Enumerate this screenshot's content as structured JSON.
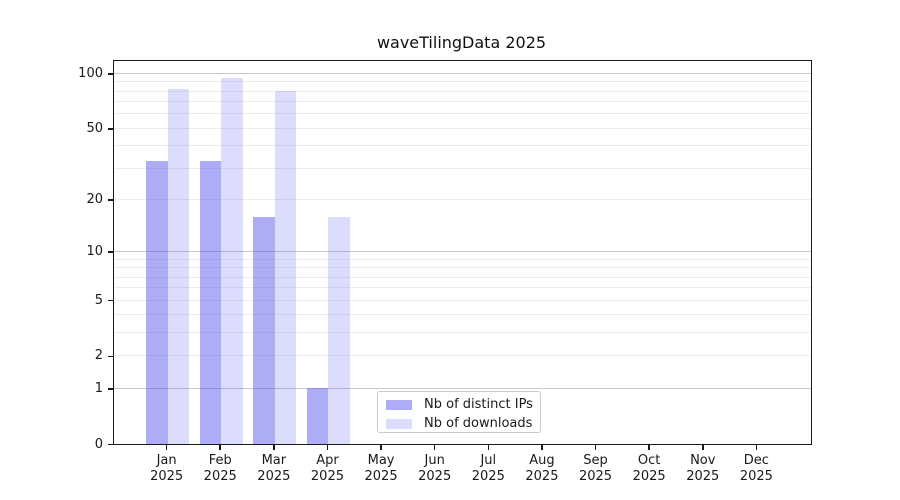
{
  "title": "waveTilingData 2025",
  "chart_data": {
    "type": "bar",
    "title": "waveTilingData 2025",
    "categories": [
      "Jan 2025",
      "Feb 2025",
      "Mar 2025",
      "Apr 2025",
      "May 2025",
      "Jun 2025",
      "Jul 2025",
      "Aug 2025",
      "Sep 2025",
      "Oct 2025",
      "Nov 2025",
      "Dec 2025"
    ],
    "month_labels": [
      "Jan",
      "Feb",
      "Mar",
      "Apr",
      "May",
      "Jun",
      "Jul",
      "Aug",
      "Sep",
      "Oct",
      "Nov",
      "Dec"
    ],
    "year_label": "2025",
    "series": [
      {
        "name": "Nb of distinct IPs",
        "color": "rgba(90,90,240,0.50)",
        "values": [
          33,
          33,
          16,
          1,
          0,
          0,
          0,
          0,
          0,
          0,
          0,
          0
        ]
      },
      {
        "name": "Nb of downloads",
        "color": "rgba(90,90,240,0.21)",
        "values": [
          82,
          94,
          80,
          16,
          0,
          0,
          0,
          0,
          0,
          0,
          0,
          0
        ]
      }
    ],
    "y_axis": {
      "scale": "symlog (position proportional to log1p of value)",
      "tick_labels": [
        "0",
        "1",
        "2",
        "5",
        "10",
        "20",
        "50",
        "100"
      ],
      "tick_values": [
        0,
        1,
        2,
        5,
        10,
        20,
        50,
        100
      ],
      "minor_gridline_values": [
        2,
        3,
        4,
        5,
        6,
        7,
        8,
        9,
        20,
        30,
        40,
        50,
        60,
        70,
        80,
        90
      ],
      "major_gridline_values": [
        1,
        10,
        100
      ],
      "range": [
        0,
        117
      ]
    },
    "legend_position": "lower center",
    "grid": true
  },
  "colors": {
    "bar_distinct_ips": "rgba(90,90,240,0.50)",
    "bar_downloads": "rgba(90,90,240,0.21)",
    "gridline_major": "#c8c8c8",
    "gridline_minor": "#ececec",
    "axis_frame": "#1a1a1a",
    "text": "#1a1a1a",
    "legend_border": "#c9c9c9",
    "background": "#ffffff"
  }
}
